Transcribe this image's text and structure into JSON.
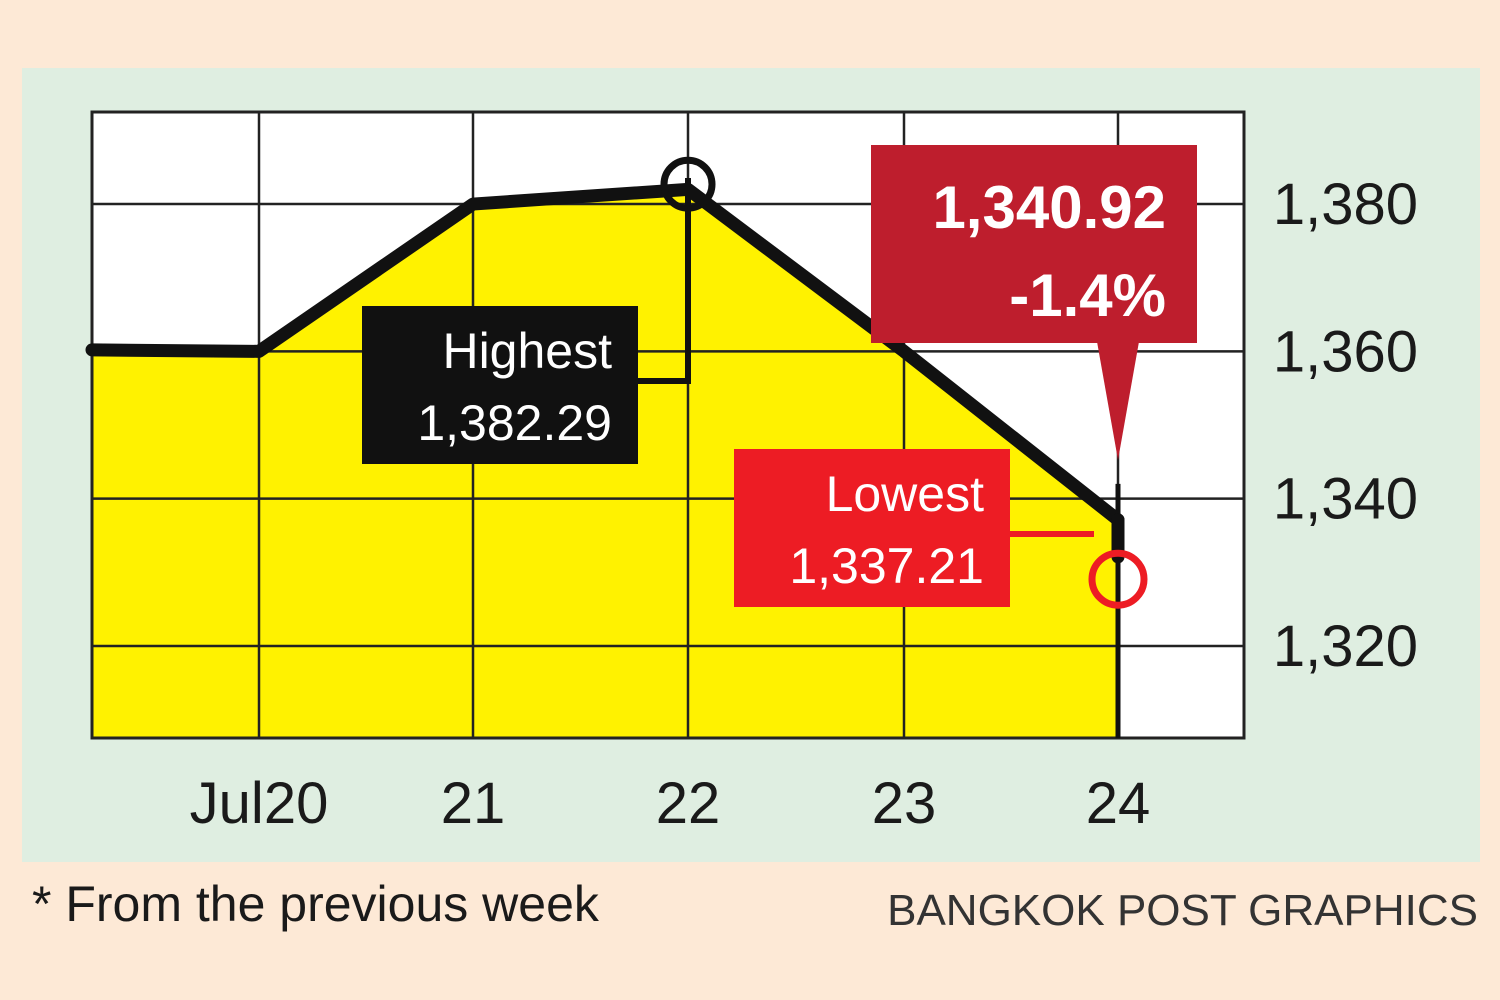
{
  "chart_data": {
    "type": "line",
    "categories": [
      "Jul20",
      "21",
      "22",
      "23",
      "24"
    ],
    "series": [
      {
        "x": [
          "Jul20 open",
          "Jul20",
          "21",
          "22 high",
          "22",
          "23",
          "24 low",
          "24"
        ],
        "values": [
          1360.2,
          1360.0,
          1380.0,
          1382.29,
          1382.0,
          1360.0,
          1337.21,
          1340.92
        ]
      }
    ],
    "y_ticks": [
      "1,320",
      "1,340",
      "1,360",
      "1,380"
    ],
    "y_tick_values": [
      1320,
      1340,
      1360,
      1380
    ],
    "ylim": [
      1307.5,
      1392.5
    ],
    "x_ticks": [
      "Jul20",
      "21",
      "22",
      "23",
      "24"
    ],
    "grid": true,
    "y_axis_side": "right",
    "fill_color": "#fff200",
    "line_color": "#111111"
  },
  "annotations": {
    "highest": {
      "label": "Highest",
      "value": "1,382.29"
    },
    "lowest": {
      "label": "Lowest",
      "value": "1,337.21"
    },
    "close": {
      "value": "1,340.92",
      "change": "-1.4%"
    }
  },
  "colors": {
    "background": "#fde9d6",
    "panel": "#dfeee1",
    "highest_box": "#111111",
    "lowest_box": "#ed1c24",
    "close_box": "#be1e2d"
  },
  "footnote": "* From the previous week",
  "credit": "BANGKOK POST GRAPHICS"
}
